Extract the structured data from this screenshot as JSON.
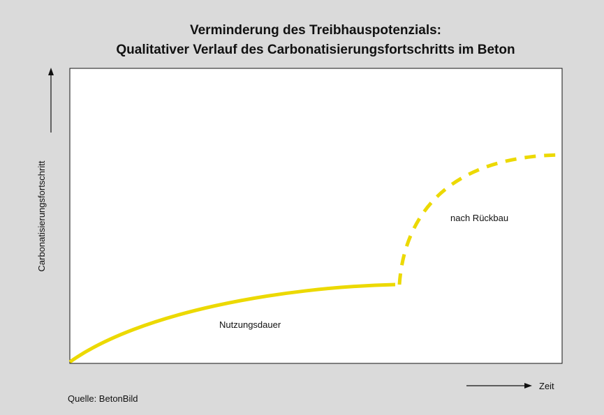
{
  "title": [
    "Verminderung des Treibhauspotenzials:",
    "Qualitativer Verlauf des Carbonatisierungsfortschritts im Beton"
  ],
  "y_axis_label": "Carbonatisierungsfortschritt",
  "x_axis_label": "Zeit",
  "annotations": [
    "Nutzungsdauer",
    "nach Rückbau"
  ],
  "source": "Quelle: BetonBild"
}
